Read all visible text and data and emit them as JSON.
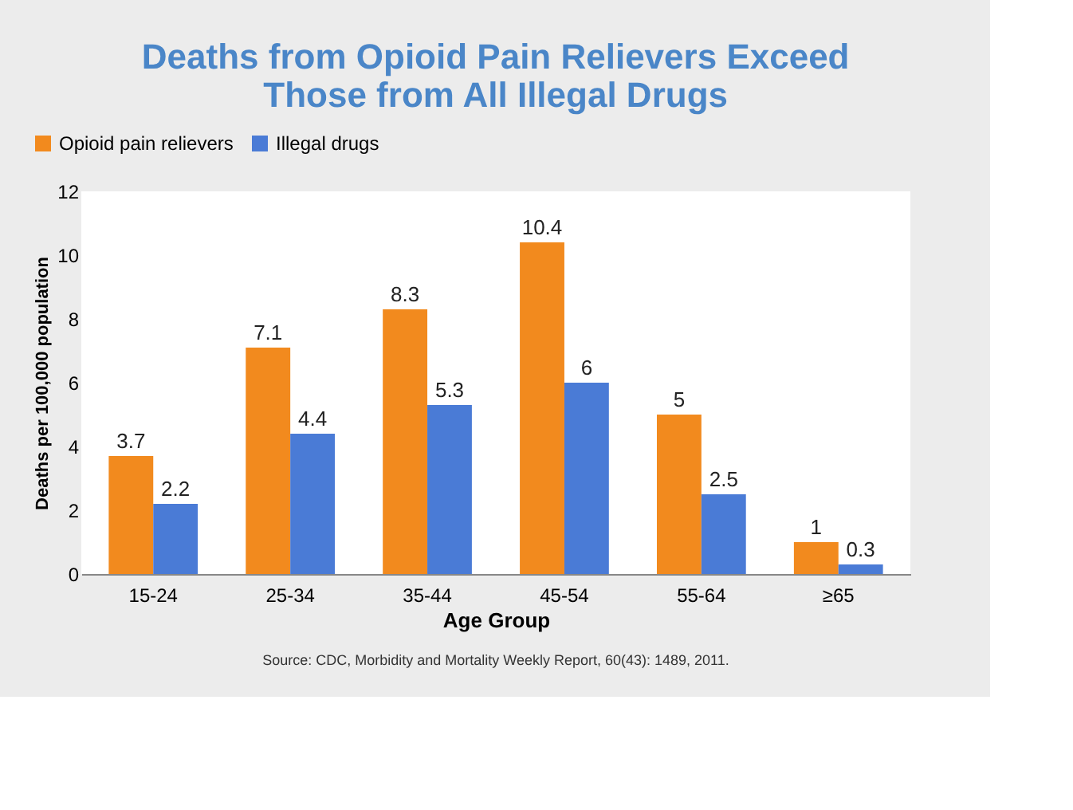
{
  "chart_data": {
    "type": "bar",
    "title": "Deaths from Opioid Pain Relievers Exceed Those from All Illegal Drugs",
    "xlabel": "Age Group",
    "ylabel": "Deaths per 100,000 population",
    "categories": [
      "15-24",
      "25-34",
      "35-44",
      "45-54",
      "55-64",
      "≥65"
    ],
    "series": [
      {
        "name": "Opioid pain relievers",
        "color": "#f28a1e",
        "values": [
          3.7,
          7.1,
          8.3,
          10.4,
          5,
          1
        ]
      },
      {
        "name": "Illegal drugs",
        "color": "#4a7bd6",
        "values": [
          2.2,
          4.4,
          5.3,
          6,
          2.5,
          0.3
        ]
      }
    ],
    "ylim": [
      0,
      12
    ],
    "yticks": [
      0,
      2,
      4,
      6,
      8,
      10,
      12
    ],
    "grid": false,
    "legend": "top",
    "data_labels": true,
    "annotations": [
      "Source: CDC, Morbidity and Mortality Weekly Report, 60(43): 1489, 2011."
    ]
  }
}
